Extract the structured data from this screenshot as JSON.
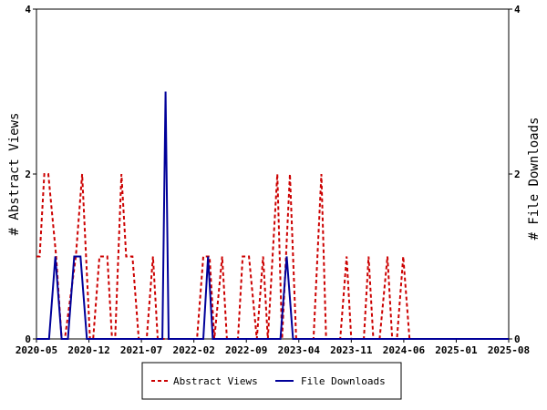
{
  "chart_data": {
    "type": "line",
    "y_left_label": "# Abstract Views",
    "y_right_label": "# File Downloads",
    "ylim": [
      0,
      4
    ],
    "y_ticks": [
      "0",
      "2",
      "4"
    ],
    "x_ticks": [
      "2020-05",
      "2020-12",
      "2021-07",
      "2022-02",
      "2022-09",
      "2023-04",
      "2023-11",
      "2024-06",
      "2025-01",
      "2025-08"
    ],
    "grid": false,
    "legend_position": "bottom",
    "series": [
      {
        "name": "Abstract Views",
        "color": "#cc0000",
        "style": "dashed",
        "points": [
          [
            0,
            1
          ],
          [
            4,
            1
          ],
          [
            10,
            2
          ],
          [
            15,
            2
          ],
          [
            25,
            1
          ],
          [
            32,
            0
          ],
          [
            36,
            0
          ],
          [
            50,
            1
          ],
          [
            58,
            2
          ],
          [
            68,
            0
          ],
          [
            72,
            0
          ],
          [
            80,
            1
          ],
          [
            90,
            1
          ],
          [
            96,
            0
          ],
          [
            100,
            0
          ],
          [
            108,
            2
          ],
          [
            114,
            1
          ],
          [
            122,
            1
          ],
          [
            130,
            0
          ],
          [
            140,
            0
          ],
          [
            148,
            1
          ],
          [
            154,
            0
          ],
          [
            204,
            0
          ],
          [
            212,
            1
          ],
          [
            220,
            1
          ],
          [
            226,
            0
          ],
          [
            236,
            1
          ],
          [
            242,
            0
          ],
          [
            256,
            0
          ],
          [
            262,
            1
          ],
          [
            270,
            1
          ],
          [
            280,
            0
          ],
          [
            288,
            1
          ],
          [
            294,
            0
          ],
          [
            306,
            2
          ],
          [
            312,
            0
          ],
          [
            322,
            2
          ],
          [
            330,
            0
          ],
          [
            352,
            0
          ],
          [
            362,
            2
          ],
          [
            368,
            0
          ],
          [
            386,
            0
          ],
          [
            394,
            1
          ],
          [
            400,
            0
          ],
          [
            416,
            0
          ],
          [
            422,
            1
          ],
          [
            428,
            0
          ],
          [
            436,
            0
          ],
          [
            446,
            1
          ],
          [
            452,
            0
          ],
          [
            458,
            0
          ],
          [
            466,
            1
          ],
          [
            474,
            0
          ],
          [
            600,
            0
          ]
        ]
      },
      {
        "name": "File Downloads",
        "color": "#000099",
        "style": "solid",
        "points": [
          [
            0,
            0
          ],
          [
            16,
            0
          ],
          [
            24,
            1
          ],
          [
            32,
            0
          ],
          [
            40,
            0
          ],
          [
            48,
            1
          ],
          [
            56,
            1
          ],
          [
            64,
            0
          ],
          [
            150,
            0
          ],
          [
            160,
            0
          ],
          [
            164,
            3
          ],
          [
            168,
            0
          ],
          [
            176,
            0
          ],
          [
            212,
            0
          ],
          [
            218,
            1
          ],
          [
            224,
            0
          ],
          [
            310,
            0
          ],
          [
            318,
            1
          ],
          [
            326,
            0
          ],
          [
            600,
            0
          ]
        ]
      }
    ]
  },
  "colors": {
    "views": "#cc0000",
    "downloads": "#000099",
    "axis": "#000000"
  }
}
